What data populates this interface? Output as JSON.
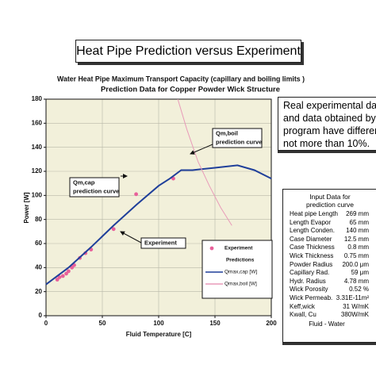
{
  "slide_title": "Heat Pipe Prediction versus Experiment",
  "note": [
    "Real experimental data,",
    "and data obtained by thi",
    "program have difference",
    "not more than 10%."
  ],
  "input_data": {
    "heading": [
      "Input Data for",
      "prediction curve"
    ],
    "rows": [
      [
        "Heat pipe Length",
        "269 mm"
      ],
      [
        "Length Evapor",
        "65 mm"
      ],
      [
        "Length Conden.",
        "140 mm"
      ],
      [
        "Case Diameter",
        "12.5 mm"
      ],
      [
        "Case Thickness",
        "0.8 mm"
      ],
      [
        "Wick Thickness",
        "0.75 mm"
      ],
      [
        "Powder Radius",
        "200.0 μm"
      ],
      [
        "Capillary Rad.",
        "59 μm"
      ],
      [
        "Hydr. Radius",
        "4.78 mm"
      ],
      [
        "Wick Porosity",
        "0.52 %"
      ],
      [
        "Wick Permeab.",
        "3.31E-11m²"
      ],
      [
        "Keff,wick",
        "31 W/mK"
      ],
      [
        "Kwall, Cu",
        "380W/mK"
      ]
    ],
    "footer": "Fluid - Water"
  },
  "chart_data": {
    "type": "line",
    "title": [
      "Water Heat Pipe Maximum Transport Capacity (capillary and boiling limits )",
      "Prediction Data for Copper Powder Wick Structure"
    ],
    "x_label": "Fluid Temperature [C]",
    "y_label": "Power [W]",
    "xlim": [
      0,
      200
    ],
    "xticks": [
      0,
      50,
      100,
      150,
      200
    ],
    "ylim": [
      0,
      180
    ],
    "yticks": [
      0,
      20,
      40,
      60,
      80,
      100,
      120,
      140,
      160,
      180
    ],
    "grid": true,
    "legend_heading": "Predictions",
    "series": [
      {
        "name": "Experiment",
        "type": "scatter",
        "color": "#e8609a",
        "x": [
          10,
          12,
          15,
          18,
          20,
          23,
          25,
          30,
          35,
          40,
          60,
          80,
          113
        ],
        "values": [
          30,
          32,
          33,
          35,
          37,
          40,
          42,
          48,
          52,
          55,
          72,
          101,
          114
        ]
      },
      {
        "name": "Qmax,cap [W]",
        "type": "line",
        "color": "#1f3f9a",
        "x": [
          0,
          20,
          40,
          60,
          80,
          100,
          110,
          120,
          130,
          150,
          170,
          185,
          200
        ],
        "values": [
          26,
          40,
          57,
          75,
          92,
          108,
          114,
          121,
          121,
          123,
          125,
          121,
          114
        ]
      },
      {
        "name": "Qmax,boil [W]",
        "type": "line",
        "color": "#e89ab8",
        "x": [
          117,
          125,
          135,
          145,
          155,
          165
        ],
        "values": [
          180,
          155,
          128,
          108,
          90,
          75
        ]
      }
    ],
    "annotations": [
      {
        "lines": [
          "Qm,cap",
          "prediction curve"
        ]
      },
      {
        "lines": [
          "Qm,boil",
          "prediction curve"
        ]
      },
      {
        "lines": [
          "Experiment"
        ]
      }
    ]
  }
}
